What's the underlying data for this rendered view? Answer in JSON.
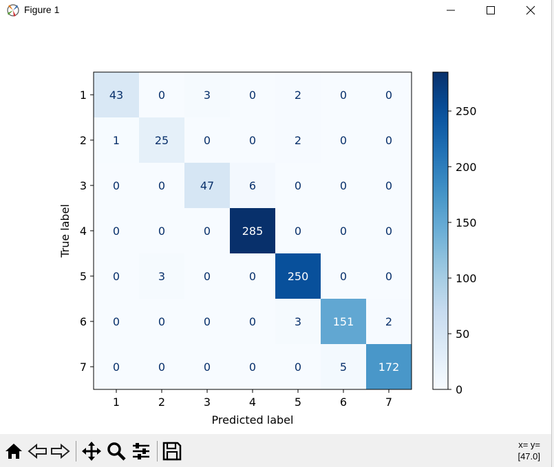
{
  "window": {
    "title": "Figure 1"
  },
  "toolbar": {
    "buttons": [
      "home-icon",
      "back-icon",
      "forward-icon",
      "pan-icon",
      "zoom-icon",
      "configure-subplots-icon",
      "save-icon"
    ],
    "coords_line1": "x= y=",
    "coords_line2": "[47.0]"
  },
  "chart_data": {
    "type": "heatmap",
    "title": "",
    "xlabel": "Predicted label",
    "ylabel": "True label",
    "x_categories": [
      "1",
      "2",
      "3",
      "4",
      "5",
      "6",
      "7"
    ],
    "y_categories": [
      "1",
      "2",
      "3",
      "4",
      "5",
      "6",
      "7"
    ],
    "matrix": [
      [
        43,
        0,
        3,
        0,
        2,
        0,
        0
      ],
      [
        1,
        25,
        0,
        0,
        2,
        0,
        0
      ],
      [
        0,
        0,
        47,
        6,
        0,
        0,
        0
      ],
      [
        0,
        0,
        0,
        285,
        0,
        0,
        0
      ],
      [
        0,
        3,
        0,
        0,
        250,
        0,
        0
      ],
      [
        0,
        0,
        0,
        0,
        3,
        151,
        2
      ],
      [
        0,
        0,
        0,
        0,
        0,
        5,
        172
      ]
    ],
    "colormap": "Blues",
    "colorbar": {
      "min": 0,
      "max": 285,
      "ticks": [
        0,
        50,
        100,
        150,
        200,
        250
      ]
    },
    "text_color_light": "#ffffff",
    "text_color_dark": "#08306b"
  }
}
